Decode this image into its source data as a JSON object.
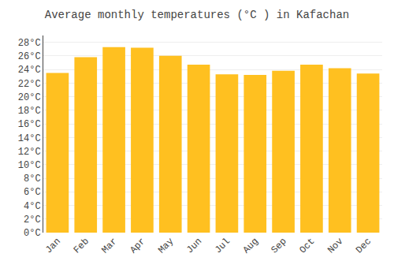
{
  "chart_data": {
    "type": "bar",
    "title": "Average monthly temperatures (°C ) in Kafachan",
    "categories": [
      "Jan",
      "Feb",
      "Mar",
      "Apr",
      "May",
      "Jun",
      "Jul",
      "Aug",
      "Sep",
      "Oct",
      "Nov",
      "Dec"
    ],
    "values": [
      23.5,
      25.8,
      27.3,
      27.2,
      26.0,
      24.7,
      23.3,
      23.2,
      23.8,
      24.7,
      24.2,
      23.4
    ],
    "color": "#FFC020",
    "ylim": [
      0,
      29
    ],
    "yticks": [
      {
        "value": 0,
        "label": "0°C"
      },
      {
        "value": 2,
        "label": "2°C"
      },
      {
        "value": 4,
        "label": "4°C"
      },
      {
        "value": 6,
        "label": "6°C"
      },
      {
        "value": 8,
        "label": "8°C"
      },
      {
        "value": 10,
        "label": "10°C"
      },
      {
        "value": 12,
        "label": "12°C"
      },
      {
        "value": 14,
        "label": "14°C"
      },
      {
        "value": 16,
        "label": "16°C"
      },
      {
        "value": 18,
        "label": "18°C"
      },
      {
        "value": 20,
        "label": "20°C"
      },
      {
        "value": 22,
        "label": "22°C"
      },
      {
        "value": 24,
        "label": "24°C"
      },
      {
        "value": 26,
        "label": "26°C"
      },
      {
        "value": 28,
        "label": "28°C"
      }
    ],
    "grid": true
  }
}
